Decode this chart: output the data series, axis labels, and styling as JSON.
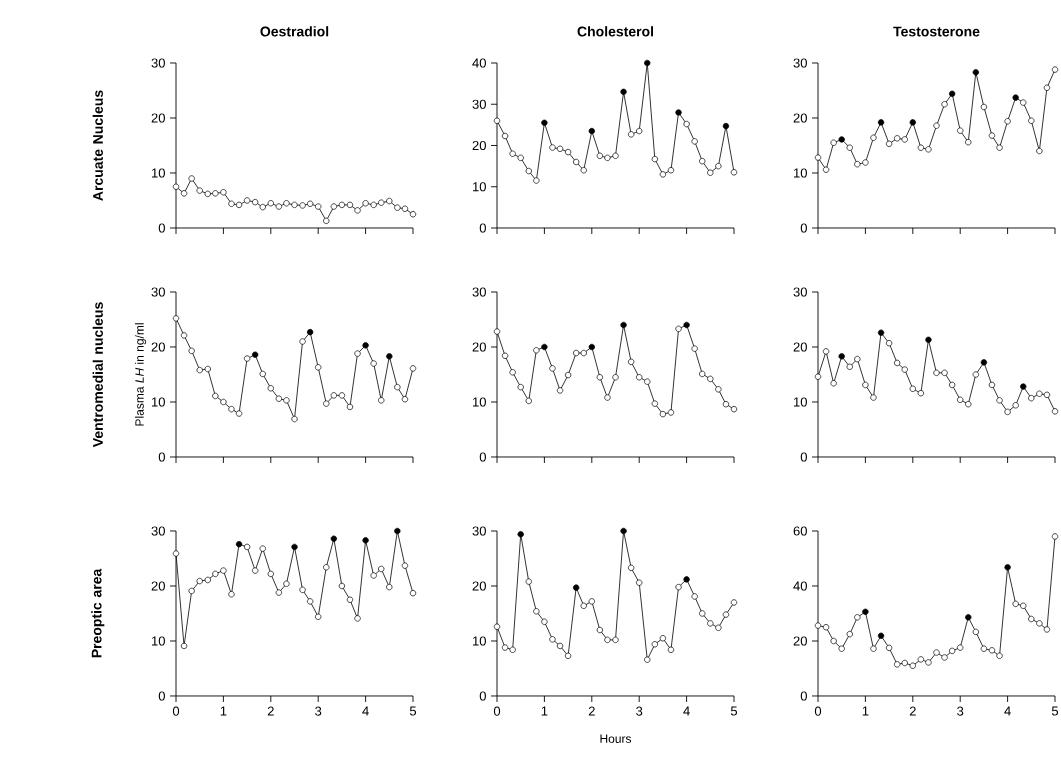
{
  "chart_data": [
    {
      "type": "line",
      "title": "Oestradiol",
      "annotations": [
        "Arcuate Nucleus"
      ],
      "marker": "circle",
      "tick_labels": "y",
      "xlim": [
        0,
        5
      ],
      "xticks": [
        0,
        1,
        2,
        3,
        4,
        5
      ],
      "ylim": [
        0,
        30
      ],
      "yticks": [
        0,
        10,
        20,
        30
      ],
      "x": [
        0,
        0.17,
        0.33,
        0.5,
        0.67,
        0.83,
        1,
        1.17,
        1.33,
        1.5,
        1.67,
        1.83,
        2,
        2.17,
        2.33,
        2.5,
        2.67,
        2.83,
        3,
        3.17,
        3.33,
        3.5,
        3.67,
        3.83,
        4,
        4.17,
        4.33,
        4.5,
        4.67,
        4.83,
        5
      ],
      "series": [
        {
          "color": "#000000",
          "values": [
            7.5,
            6.3,
            9.0,
            6.8,
            6.2,
            6.3,
            6.5,
            4.4,
            4.2,
            5.0,
            4.7,
            3.8,
            4.5,
            3.9,
            4.5,
            4.2,
            4.1,
            4.4,
            3.9,
            1.3,
            3.9,
            4.2,
            4.2,
            3.2,
            4.5,
            4.2,
            4.6,
            4.9,
            3.7,
            3.5,
            2.5
          ],
          "colors": [
            "#ffffff",
            "#ffffff",
            "#ffffff",
            "#ffffff",
            "#ffffff",
            "#ffffff",
            "#ffffff",
            "#ffffff",
            "#ffffff",
            "#ffffff",
            "#ffffff",
            "#ffffff",
            "#ffffff",
            "#ffffff",
            "#ffffff",
            "#ffffff",
            "#ffffff",
            "#ffffff",
            "#ffffff",
            "#ffffff",
            "#ffffff",
            "#ffffff",
            "#ffffff",
            "#ffffff",
            "#ffffff",
            "#ffffff",
            "#ffffff",
            "#ffffff",
            "#ffffff",
            "#ffffff",
            "#ffffff"
          ]
        }
      ]
    },
    {
      "type": "line",
      "title": "Cholesterol",
      "marker": "circle",
      "tick_labels": "y",
      "xlim": [
        0,
        5
      ],
      "xticks": [
        0,
        1,
        2,
        3,
        4,
        5
      ],
      "ylim": [
        0,
        40
      ],
      "yticks": [
        0,
        10,
        20,
        30,
        40
      ],
      "x": [
        0,
        0.17,
        0.33,
        0.5,
        0.67,
        0.83,
        1,
        1.17,
        1.33,
        1.5,
        1.67,
        1.83,
        2,
        2.17,
        2.33,
        2.5,
        2.67,
        2.83,
        3,
        3.17,
        3.33,
        3.5,
        3.67,
        3.83,
        4,
        4.17,
        4.33,
        4.5,
        4.67,
        4.83,
        5
      ],
      "series": [
        {
          "color": "#000000",
          "values": [
            26,
            22.3,
            18,
            17,
            13.8,
            11.5,
            25.5,
            19.5,
            19.2,
            18.4,
            16,
            14,
            23.5,
            17.5,
            17,
            17.5,
            33,
            22.7,
            23.5,
            40,
            16.7,
            13,
            14,
            28,
            25.2,
            21,
            16.2,
            13.4,
            15,
            24.7,
            13.5
          ],
          "colors": [
            "#ffffff",
            "#ffffff",
            "#ffffff",
            "#ffffff",
            "#ffffff",
            "#ffffff",
            "#000000",
            "#ffffff",
            "#ffffff",
            "#ffffff",
            "#ffffff",
            "#ffffff",
            "#000000",
            "#ffffff",
            "#ffffff",
            "#ffffff",
            "#000000",
            "#ffffff",
            "#ffffff",
            "#000000",
            "#ffffff",
            "#ffffff",
            "#ffffff",
            "#000000",
            "#ffffff",
            "#ffffff",
            "#ffffff",
            "#ffffff",
            "#ffffff",
            "#000000",
            "#ffffff"
          ]
        }
      ]
    },
    {
      "type": "line",
      "title": "Testosterone",
      "marker": "circle",
      "tick_labels": "y",
      "xlim": [
        0,
        5
      ],
      "xticks": [
        0,
        1,
        2,
        3,
        4,
        5
      ],
      "ylim": [
        0,
        30
      ],
      "yticks": [
        0,
        10,
        20,
        30
      ],
      "x": [
        0,
        0.17,
        0.33,
        0.5,
        0.67,
        0.83,
        1,
        1.17,
        1.33,
        1.5,
        1.67,
        1.83,
        2,
        2.17,
        2.33,
        2.5,
        2.67,
        2.83,
        3,
        3.17,
        3.33,
        3.5,
        3.67,
        3.83,
        4,
        4.17,
        4.33,
        4.5,
        4.67,
        4.83,
        5
      ],
      "series": [
        {
          "color": "#000000",
          "values": [
            12.8,
            10.6,
            15.5,
            16.1,
            14.6,
            11.6,
            11.9,
            16.4,
            19.2,
            15.3,
            16.3,
            16.1,
            19.2,
            14.6,
            14.3,
            18.6,
            22.5,
            24.4,
            17.7,
            15.6,
            28.3,
            22,
            16.8,
            14.6,
            19.4,
            23.7,
            22.8,
            19.5,
            14,
            25.5,
            28.8
          ],
          "colors": [
            "#ffffff",
            "#ffffff",
            "#ffffff",
            "#000000",
            "#ffffff",
            "#ffffff",
            "#ffffff",
            "#ffffff",
            "#000000",
            "#ffffff",
            "#ffffff",
            "#ffffff",
            "#000000",
            "#ffffff",
            "#ffffff",
            "#ffffff",
            "#ffffff",
            "#000000",
            "#ffffff",
            "#ffffff",
            "#000000",
            "#ffffff",
            "#ffffff",
            "#ffffff",
            "#ffffff",
            "#000000",
            "#ffffff",
            "#ffffff",
            "#ffffff",
            "#ffffff",
            "#ffffff"
          ]
        }
      ]
    },
    {
      "type": "line",
      "ylabel": "Plasma *LH* in ng/ml",
      "annotations": [
        "Ventromedial nucleus"
      ],
      "marker": "circle",
      "tick_labels": "y",
      "xlim": [
        0,
        5
      ],
      "xticks": [
        0,
        1,
        2,
        3,
        4,
        5
      ],
      "ylim": [
        0,
        30
      ],
      "yticks": [
        0,
        10,
        20,
        30
      ],
      "x": [
        0,
        0.17,
        0.33,
        0.5,
        0.67,
        0.83,
        1,
        1.17,
        1.33,
        1.5,
        1.67,
        1.83,
        2,
        2.17,
        2.33,
        2.5,
        2.67,
        2.83,
        3,
        3.17,
        3.33,
        3.5,
        3.67,
        3.83,
        4,
        4.17,
        4.33,
        4.5,
        4.67,
        4.83,
        5
      ],
      "series": [
        {
          "color": "#000000",
          "values": [
            25.2,
            22.1,
            19.3,
            15.8,
            16,
            11.1,
            10,
            8.7,
            7.9,
            17.9,
            18.6,
            15.1,
            12.5,
            10.6,
            10.3,
            6.9,
            21,
            22.7,
            16.3,
            9.7,
            11.2,
            11.2,
            9.1,
            18.8,
            20.3,
            17,
            10.3,
            18.3,
            12.7,
            10.5,
            16.1
          ],
          "colors": [
            "#ffffff",
            "#ffffff",
            "#ffffff",
            "#ffffff",
            "#ffffff",
            "#ffffff",
            "#ffffff",
            "#ffffff",
            "#ffffff",
            "#ffffff",
            "#000000",
            "#ffffff",
            "#ffffff",
            "#ffffff",
            "#ffffff",
            "#ffffff",
            "#ffffff",
            "#000000",
            "#ffffff",
            "#ffffff",
            "#ffffff",
            "#ffffff",
            "#ffffff",
            "#ffffff",
            "#000000",
            "#ffffff",
            "#ffffff",
            "#000000",
            "#ffffff",
            "#ffffff",
            "#ffffff"
          ]
        }
      ]
    },
    {
      "type": "line",
      "marker": "circle",
      "tick_labels": "y",
      "xlim": [
        0,
        5
      ],
      "xticks": [
        0,
        1,
        2,
        3,
        4,
        5
      ],
      "ylim": [
        0,
        30
      ],
      "yticks": [
        0,
        10,
        20,
        30
      ],
      "x": [
        0,
        0.17,
        0.33,
        0.5,
        0.67,
        0.83,
        1,
        1.17,
        1.33,
        1.5,
        1.67,
        1.83,
        2,
        2.17,
        2.33,
        2.5,
        2.67,
        2.83,
        3,
        3.17,
        3.33,
        3.5,
        3.67,
        3.83,
        4,
        4.17,
        4.33,
        4.5,
        4.67,
        4.83,
        5
      ],
      "series": [
        {
          "color": "#000000",
          "values": [
            22.8,
            18.4,
            15.4,
            12.7,
            10.2,
            19.4,
            20,
            16.1,
            12.1,
            14.9,
            18.9,
            18.9,
            20,
            14.5,
            10.8,
            14.5,
            24,
            17.3,
            14.5,
            13.7,
            9.7,
            7.8,
            8.1,
            23.3,
            24,
            19.7,
            15.1,
            14.2,
            12.3,
            9.6,
            8.7
          ],
          "colors": [
            "#ffffff",
            "#ffffff",
            "#ffffff",
            "#ffffff",
            "#ffffff",
            "#ffffff",
            "#000000",
            "#ffffff",
            "#ffffff",
            "#ffffff",
            "#ffffff",
            "#ffffff",
            "#000000",
            "#ffffff",
            "#ffffff",
            "#ffffff",
            "#000000",
            "#ffffff",
            "#ffffff",
            "#ffffff",
            "#ffffff",
            "#ffffff",
            "#ffffff",
            "#ffffff",
            "#000000",
            "#ffffff",
            "#ffffff",
            "#ffffff",
            "#ffffff",
            "#ffffff",
            "#ffffff"
          ]
        }
      ]
    },
    {
      "type": "line",
      "marker": "circle",
      "tick_labels": "y",
      "xlim": [
        0,
        5
      ],
      "xticks": [
        0,
        1,
        2,
        3,
        4,
        5
      ],
      "ylim": [
        0,
        30
      ],
      "yticks": [
        0,
        10,
        20,
        30
      ],
      "x": [
        0,
        0.17,
        0.33,
        0.5,
        0.67,
        0.83,
        1,
        1.17,
        1.33,
        1.5,
        1.67,
        1.83,
        2,
        2.17,
        2.33,
        2.5,
        2.67,
        2.83,
        3,
        3.17,
        3.33,
        3.5,
        3.67,
        3.83,
        4,
        4.17,
        4.33,
        4.5,
        4.67,
        4.83,
        5
      ],
      "series": [
        {
          "color": "#000000",
          "values": [
            14.6,
            19.2,
            13.4,
            18.3,
            16.4,
            17.8,
            13.1,
            10.8,
            22.6,
            20.7,
            17.1,
            15.9,
            12.4,
            11.6,
            21.3,
            15.3,
            15.3,
            13.1,
            10.4,
            9.6,
            15,
            17.2,
            13.1,
            10.3,
            8.2,
            9.4,
            12.8,
            10.7,
            11.5,
            11.3,
            8.3
          ],
          "colors": [
            "#ffffff",
            "#ffffff",
            "#ffffff",
            "#000000",
            "#ffffff",
            "#ffffff",
            "#ffffff",
            "#ffffff",
            "#000000",
            "#ffffff",
            "#ffffff",
            "#ffffff",
            "#ffffff",
            "#ffffff",
            "#000000",
            "#ffffff",
            "#ffffff",
            "#ffffff",
            "#ffffff",
            "#ffffff",
            "#ffffff",
            "#000000",
            "#ffffff",
            "#ffffff",
            "#ffffff",
            "#ffffff",
            "#000000",
            "#ffffff",
            "#ffffff",
            "#ffffff",
            "#ffffff"
          ]
        }
      ]
    },
    {
      "type": "line",
      "annotations": [
        "Preoptic area"
      ],
      "marker": "circle",
      "xlim": [
        0,
        5
      ],
      "xticks": [
        0,
        1,
        2,
        3,
        4,
        5
      ],
      "ylim": [
        0,
        30
      ],
      "yticks": [
        0,
        10,
        20,
        30
      ],
      "x": [
        0,
        0.17,
        0.33,
        0.5,
        0.67,
        0.83,
        1,
        1.17,
        1.33,
        1.5,
        1.67,
        1.83,
        2,
        2.17,
        2.33,
        2.5,
        2.67,
        2.83,
        3,
        3.17,
        3.33,
        3.5,
        3.67,
        3.83,
        4,
        4.17,
        4.33,
        4.5,
        4.67,
        4.83,
        5
      ],
      "series": [
        {
          "color": "#000000",
          "values": [
            25.9,
            9.1,
            19.1,
            20.9,
            21.1,
            22.2,
            22.8,
            18.5,
            27.6,
            27.1,
            22.8,
            26.8,
            22.2,
            18.8,
            20.4,
            27.1,
            19.3,
            17.2,
            14.4,
            23.4,
            28.6,
            20,
            17.5,
            14.1,
            28.3,
            21.9,
            23.1,
            19.8,
            30,
            23.7,
            18.7
          ],
          "colors": [
            "#ffffff",
            "#ffffff",
            "#ffffff",
            "#ffffff",
            "#ffffff",
            "#ffffff",
            "#ffffff",
            "#ffffff",
            "#000000",
            "#ffffff",
            "#ffffff",
            "#ffffff",
            "#ffffff",
            "#ffffff",
            "#ffffff",
            "#000000",
            "#ffffff",
            "#ffffff",
            "#ffffff",
            "#ffffff",
            "#000000",
            "#ffffff",
            "#ffffff",
            "#ffffff",
            "#000000",
            "#ffffff",
            "#ffffff",
            "#ffffff",
            "#000000",
            "#ffffff",
            "#ffffff"
          ]
        }
      ]
    },
    {
      "type": "line",
      "xlabel": "Hours",
      "marker": "circle",
      "xlim": [
        0,
        5
      ],
      "xticks": [
        0,
        1,
        2,
        3,
        4,
        5
      ],
      "ylim": [
        0,
        30
      ],
      "yticks": [
        0,
        10,
        20,
        30
      ],
      "x": [
        0,
        0.17,
        0.33,
        0.5,
        0.67,
        0.83,
        1,
        1.17,
        1.33,
        1.5,
        1.67,
        1.83,
        2,
        2.17,
        2.33,
        2.5,
        2.67,
        2.83,
        3,
        3.17,
        3.33,
        3.5,
        3.67,
        3.83,
        4,
        4.17,
        4.33,
        4.5,
        4.67,
        4.83,
        5
      ],
      "series": [
        {
          "color": "#000000",
          "values": [
            12.6,
            8.8,
            8.4,
            29.4,
            20.8,
            15.4,
            13.5,
            10.3,
            9.1,
            7.3,
            19.7,
            16.4,
            17.2,
            12,
            10.2,
            10.2,
            30,
            23.3,
            20.6,
            6.6,
            9.4,
            10.5,
            8.4,
            19.8,
            21.2,
            18.1,
            15,
            13.2,
            12.4,
            14.8,
            17
          ],
          "colors": [
            "#ffffff",
            "#ffffff",
            "#ffffff",
            "#000000",
            "#ffffff",
            "#ffffff",
            "#ffffff",
            "#ffffff",
            "#ffffff",
            "#ffffff",
            "#000000",
            "#ffffff",
            "#ffffff",
            "#ffffff",
            "#ffffff",
            "#ffffff",
            "#000000",
            "#ffffff",
            "#ffffff",
            "#ffffff",
            "#ffffff",
            "#ffffff",
            "#ffffff",
            "#ffffff",
            "#000000",
            "#ffffff",
            "#ffffff",
            "#ffffff",
            "#ffffff",
            "#ffffff",
            "#ffffff"
          ]
        }
      ]
    },
    {
      "type": "line",
      "marker": "circle",
      "xlim": [
        0,
        5
      ],
      "xticks": [
        0,
        1,
        2,
        3,
        4,
        5
      ],
      "ylim": [
        0,
        60
      ],
      "yticks": [
        0,
        20,
        40,
        60
      ],
      "x": [
        0,
        0.17,
        0.33,
        0.5,
        0.67,
        0.83,
        1,
        1.17,
        1.33,
        1.5,
        1.67,
        1.83,
        2,
        2.17,
        2.33,
        2.5,
        2.67,
        2.83,
        3,
        3.17,
        3.33,
        3.5,
        3.67,
        3.83,
        4,
        4.17,
        4.33,
        4.5,
        4.67,
        4.83,
        5
      ],
      "series": [
        {
          "color": "#000000",
          "values": [
            25.6,
            25,
            20,
            17.2,
            22.5,
            28.6,
            30.6,
            17.2,
            21.9,
            17.5,
            11.5,
            12,
            11,
            13.3,
            12.2,
            15.8,
            14,
            16.4,
            17.6,
            28.6,
            23.3,
            17.2,
            16.6,
            14.6,
            46.8,
            33.5,
            32.8,
            28,
            26.4,
            24.2,
            58
          ],
          "colors": [
            "#ffffff",
            "#ffffff",
            "#ffffff",
            "#ffffff",
            "#ffffff",
            "#ffffff",
            "#000000",
            "#ffffff",
            "#000000",
            "#ffffff",
            "#ffffff",
            "#ffffff",
            "#ffffff",
            "#ffffff",
            "#ffffff",
            "#ffffff",
            "#ffffff",
            "#ffffff",
            "#ffffff",
            "#000000",
            "#ffffff",
            "#ffffff",
            "#ffffff",
            "#ffffff",
            "#000000",
            "#ffffff",
            "#ffffff",
            "#ffffff",
            "#ffffff",
            "#ffffff",
            "#ffffff"
          ]
        }
      ]
    }
  ]
}
